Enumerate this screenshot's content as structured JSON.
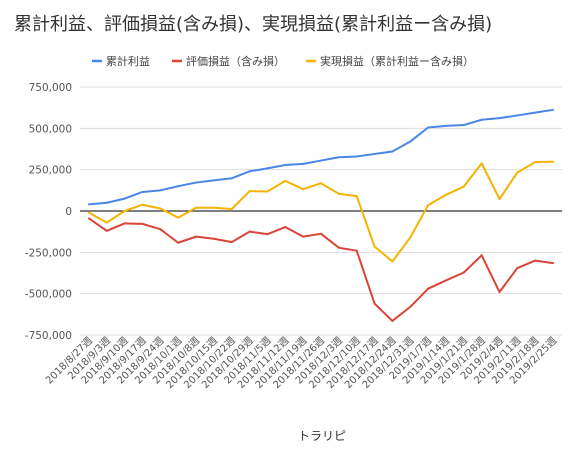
{
  "chart_data": {
    "type": "line",
    "title": "累計利益、評価損益(含み損)、実現損益(累計利益ー含み損)",
    "xlabel": "トラリピ",
    "ylabel": "",
    "ylim": [
      -750000,
      750000
    ],
    "yticks": [
      750000,
      500000,
      250000,
      0,
      -250000,
      -500000,
      -750000
    ],
    "ytick_labels": [
      "750,000",
      "500,000",
      "250,000",
      "0",
      "-250,000",
      "-500,000",
      "-750,000"
    ],
    "grid": "horizontal",
    "legend_position": "top",
    "categories": [
      "2018/8/27週",
      "2018/9/3週",
      "2018/9/10週",
      "2018/9/17週",
      "2018/9/24週",
      "2018/10/1週",
      "2018/10/8週",
      "2018/10/15週",
      "2018/10/22週",
      "2018/10/29週",
      "2018/11/5週",
      "2018/11/12週",
      "2018/11/19週",
      "2018/11/26週",
      "2018/12/3週",
      "2018/12/10週",
      "2018/12/17週",
      "2018/12/24週",
      "2018/12/31週",
      "2019/1/7週",
      "2019/1/14週",
      "2019/1/21週",
      "2019/1/28週",
      "2019/2/4週",
      "2019/2/11週",
      "2019/2/18週",
      "2019/2/25週"
    ],
    "series": [
      {
        "name": "累計利益",
        "color": "#4a86e8",
        "values": [
          40000,
          50000,
          75000,
          115000,
          125000,
          150000,
          172000,
          185000,
          198000,
          240000,
          258000,
          278000,
          285000,
          305000,
          325000,
          330000,
          345000,
          360000,
          420000,
          505000,
          515000,
          520000,
          552000,
          562000,
          578000,
          595000,
          612000
        ]
      },
      {
        "name": "評価損益（含み損）",
        "color": "#db4437",
        "values": [
          -45000,
          -120000,
          -75000,
          -78000,
          -110000,
          -192000,
          -155000,
          -168000,
          -188000,
          -125000,
          -140000,
          -97000,
          -155000,
          -138000,
          -222000,
          -240000,
          -560000,
          -665000,
          -580000,
          -470000,
          -420000,
          -372000,
          -268000,
          -490000,
          -345000,
          -300000,
          -315000
        ]
      },
      {
        "name": "実現損益（累計利益ー含み損）",
        "color": "#f4b400",
        "values": [
          -10000,
          -70000,
          0,
          38000,
          15000,
          -40000,
          20000,
          20000,
          12000,
          120000,
          118000,
          182000,
          132000,
          168000,
          104000,
          90000,
          -215000,
          -305000,
          -160000,
          35000,
          98000,
          148000,
          288000,
          72000,
          233000,
          296000,
          298000
        ]
      }
    ]
  }
}
